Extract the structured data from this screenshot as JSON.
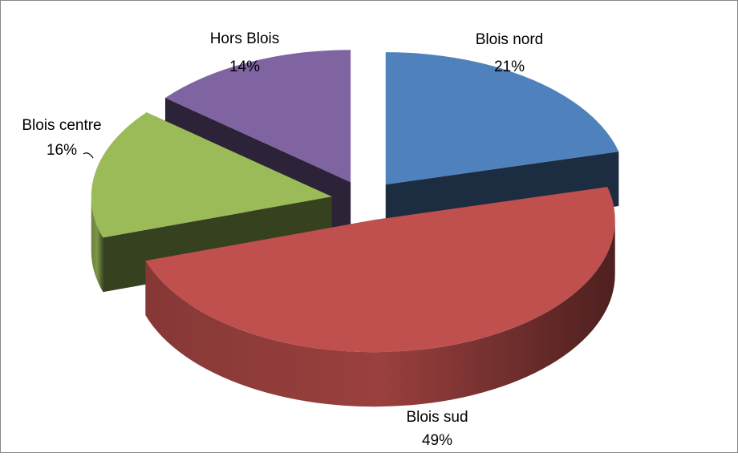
{
  "chart_data": {
    "type": "pie3d",
    "categories": [
      "Blois nord",
      "Blois sud",
      "Blois centre",
      "Hors Blois"
    ],
    "values": [
      21,
      49,
      16,
      14
    ],
    "value_labels": [
      "21%",
      "49%",
      "16%",
      "14%"
    ],
    "colors": [
      "#4f81bd",
      "#c0504d",
      "#9bbb59",
      "#8064a2"
    ]
  }
}
